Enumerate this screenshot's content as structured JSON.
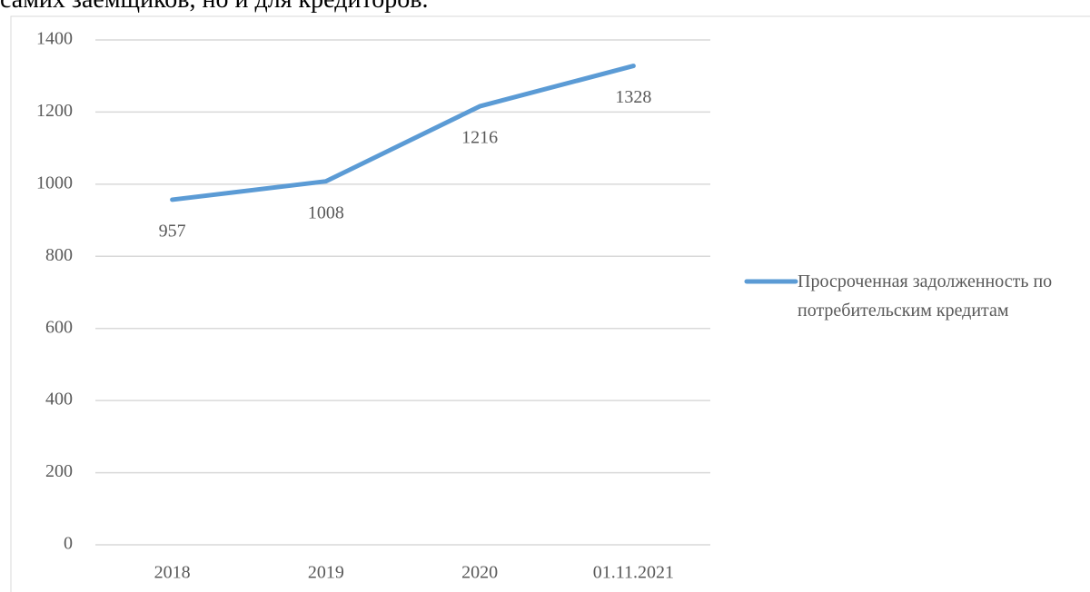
{
  "document": {
    "text": "самих заемщиков, но и для кредиторов."
  },
  "chart_data": {
    "type": "line",
    "categories": [
      "2018",
      "2019",
      "2020",
      "01.11.2021"
    ],
    "series": [
      {
        "name": "Просроченная задолженность по потребительским кредитам",
        "color": "#5b9bd5",
        "values": [
          957,
          1008,
          1216,
          1328
        ]
      }
    ],
    "ylim": [
      0,
      1400
    ],
    "yticks": [
      0,
      200,
      400,
      600,
      800,
      1000,
      1200,
      1400
    ],
    "grid": true,
    "legend": "right"
  }
}
